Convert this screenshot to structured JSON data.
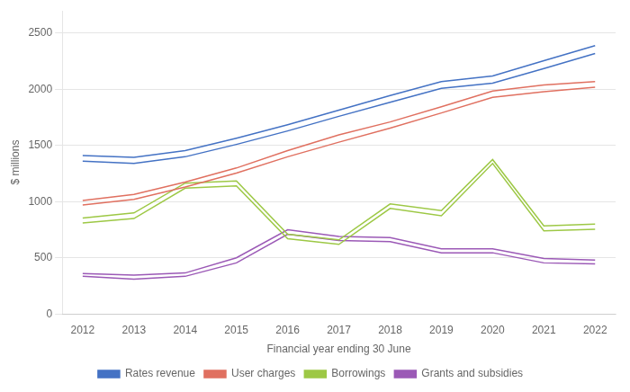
{
  "chart_data": {
    "type": "line",
    "xlabel": "Financial year ending 30 June",
    "ylabel": "$ millions",
    "x": [
      2012,
      2013,
      2014,
      2015,
      2016,
      2017,
      2018,
      2019,
      2020,
      2021,
      2022
    ],
    "series": [
      {
        "name": "Rates revenue",
        "color": "#4472c4",
        "lower": [
          1360,
          1340,
          1400,
          1510,
          1630,
          1760,
          1885,
          2010,
          2055,
          2185,
          2320
        ],
        "upper": [
          1410,
          1395,
          1455,
          1565,
          1685,
          1815,
          1945,
          2070,
          2120,
          2255,
          2390
        ]
      },
      {
        "name": "User charges",
        "color": "#e07060",
        "lower": [
          970,
          1020,
          1130,
          1255,
          1400,
          1530,
          1655,
          1790,
          1930,
          1980,
          2020
        ],
        "upper": [
          1010,
          1065,
          1175,
          1300,
          1455,
          1595,
          1710,
          1845,
          1985,
          2040,
          2070
        ]
      },
      {
        "name": "Borrowings",
        "color": "#9dc845",
        "lower": [
          810,
          850,
          1120,
          1140,
          670,
          620,
          940,
          875,
          1340,
          740,
          755
        ],
        "upper": [
          855,
          900,
          1165,
          1185,
          710,
          660,
          980,
          920,
          1375,
          785,
          800
        ]
      },
      {
        "name": "Grants and subsidies",
        "color": "#9b59b6",
        "lower": [
          335,
          310,
          335,
          455,
          710,
          655,
          645,
          545,
          545,
          455,
          445
        ],
        "upper": [
          360,
          345,
          365,
          500,
          750,
          690,
          680,
          580,
          580,
          495,
          480
        ]
      }
    ],
    "xlim": [
      2011.6,
      2022.4
    ],
    "xticks": [
      2012,
      2013,
      2014,
      2015,
      2016,
      2017,
      2018,
      2019,
      2020,
      2021,
      2022
    ],
    "ylim": [
      0,
      2700
    ],
    "yticks": [
      0,
      500,
      1000,
      1500,
      2000,
      2500
    ],
    "grid": "y",
    "legend": "bottom"
  }
}
